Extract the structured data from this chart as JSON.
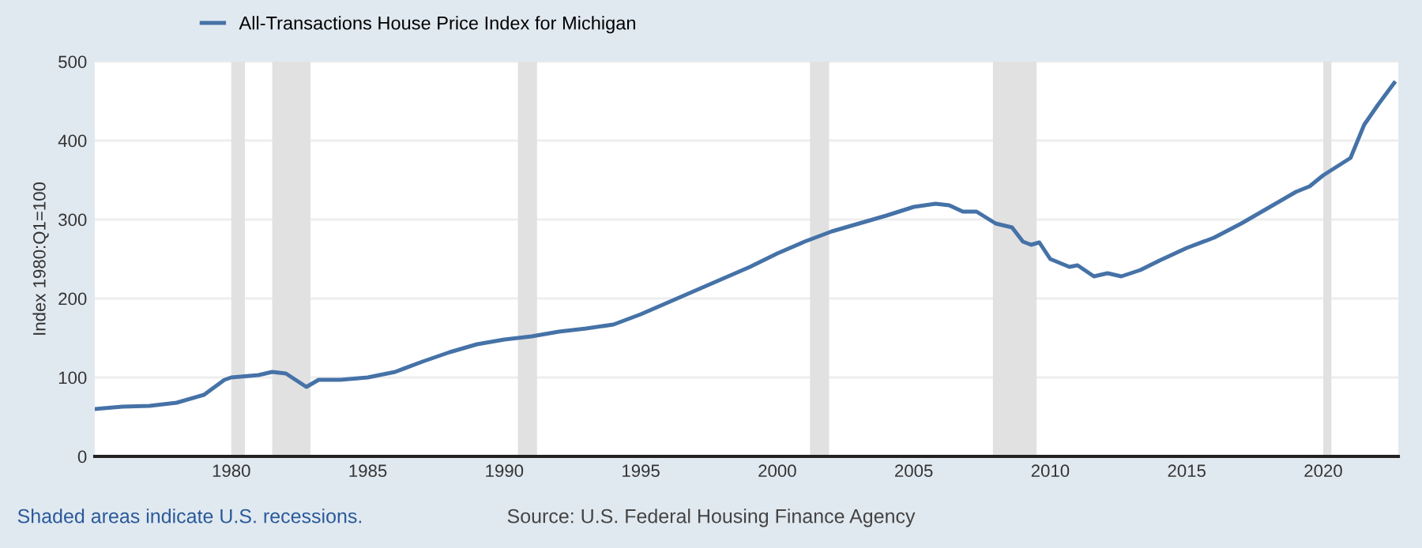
{
  "chart_data": {
    "type": "line",
    "ylabel": "Index 1980:Q1=100",
    "series": [
      {
        "name": "All-Transactions House Price Index for Michigan",
        "color": "#4572a7",
        "x": [
          1975,
          1976,
          1977,
          1978,
          1979,
          1979.75,
          1980,
          1981,
          1981.5,
          1982,
          1982.75,
          1983.2,
          1984,
          1985,
          1986,
          1987,
          1988,
          1989,
          1990,
          1991,
          1992,
          1993,
          1994,
          1995,
          1996,
          1997,
          1998,
          1999,
          2000,
          2001,
          2002,
          2003,
          2004,
          2005,
          2005.8,
          2006.3,
          2006.8,
          2007.3,
          2008,
          2008.6,
          2009,
          2009.3,
          2009.6,
          2010,
          2010.7,
          2011,
          2011.6,
          2012.1,
          2012.6,
          2013.3,
          2014,
          2015,
          2016,
          2017,
          2018,
          2019,
          2019.5,
          2020,
          2021,
          2021.5,
          2022,
          2022.6
        ],
        "values": [
          60,
          63,
          64,
          68,
          78,
          97,
          100,
          103,
          107,
          105,
          88,
          97,
          97,
          100,
          107,
          120,
          132,
          142,
          148,
          152,
          158,
          162,
          167,
          180,
          195,
          210,
          225,
          240,
          257,
          272,
          285,
          295,
          305,
          316,
          320,
          318,
          310,
          310,
          295,
          290,
          272,
          268,
          271,
          250,
          240,
          242,
          228,
          232,
          228,
          236,
          248,
          264,
          277,
          295,
          315,
          335,
          342,
          356,
          378,
          420,
          445,
          473
        ]
      }
    ],
    "xlim": [
      1975,
      2022.75
    ],
    "xticks": [
      1980,
      1985,
      1990,
      1995,
      2000,
      2005,
      2010,
      2015,
      2020
    ],
    "ylim": [
      0,
      500
    ],
    "yticks": [
      0,
      100,
      200,
      300,
      400,
      500
    ],
    "grid": "y",
    "legend": "top left",
    "line_style": "solid",
    "marker": "none",
    "bands": [
      {
        "axis": "x",
        "from": 1980.0,
        "to": 1980.5,
        "color": "#e1e1e1"
      },
      {
        "axis": "x",
        "from": 1981.5,
        "to": 1982.9,
        "color": "#e1e1e1"
      },
      {
        "axis": "x",
        "from": 1990.5,
        "to": 1991.2,
        "color": "#e1e1e1"
      },
      {
        "axis": "x",
        "from": 2001.2,
        "to": 2001.9,
        "color": "#e1e1e1"
      },
      {
        "axis": "x",
        "from": 2007.9,
        "to": 2009.5,
        "color": "#e1e1e1"
      },
      {
        "axis": "x",
        "from": 2020.0,
        "to": 2020.3,
        "color": "#e1e1e1"
      }
    ],
    "annotations": [
      "Shaded areas indicate U.S. recessions.",
      "Source: U.S. Federal Housing Finance Agency"
    ]
  }
}
